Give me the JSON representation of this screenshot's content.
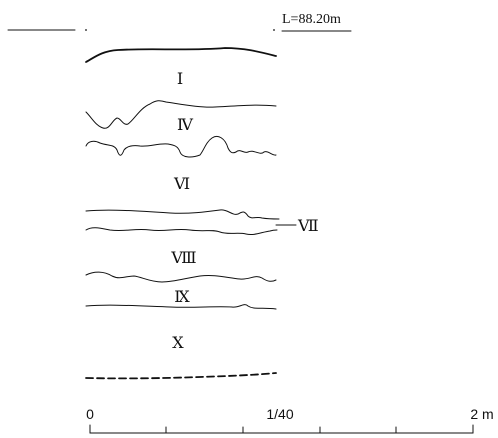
{
  "level_label": "L=88.20m",
  "layers": {
    "I": "Ⅰ",
    "IV": "Ⅳ",
    "VI": "Ⅵ",
    "VII": "Ⅶ",
    "VIII": "Ⅷ",
    "IX": "Ⅸ",
    "X": "Ⅹ"
  },
  "scale": {
    "start": "0",
    "ratio": "1/40",
    "end": "2 m"
  }
}
